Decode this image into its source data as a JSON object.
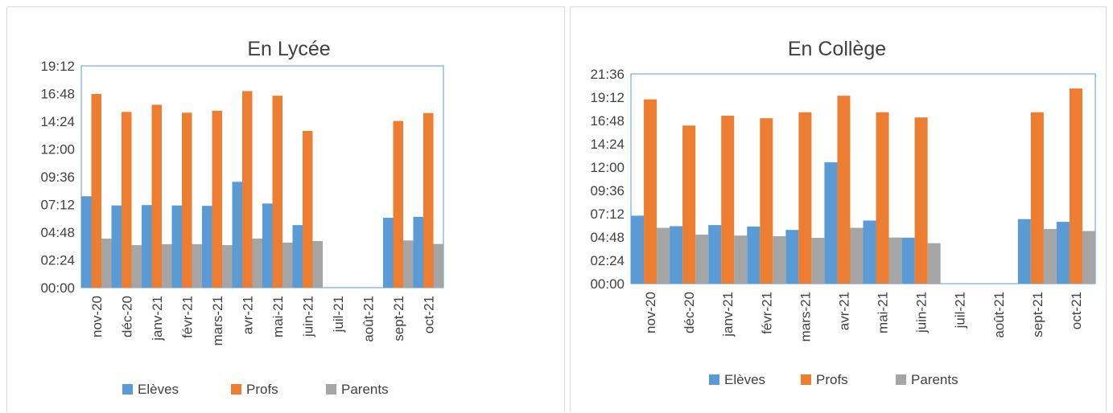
{
  "colors": {
    "eleves": "#5b9bd5",
    "profs": "#ed7d31",
    "parents": "#a5a5a5",
    "plot_border": "#5b9bd5"
  },
  "legend": [
    "Elèves",
    "Profs",
    "Parents"
  ],
  "chart_data": [
    {
      "type": "bar",
      "title": "En Lycée",
      "categories": [
        "nov-20",
        "déc-20",
        "janv-21",
        "févr-21",
        "mars-21",
        "avr-21",
        "mai-21",
        "juin-21",
        "juil-21",
        "août-21",
        "sept-21",
        "oct-21"
      ],
      "ylim_minutes": [
        0,
        1152
      ],
      "y_ticks": [
        "00:00",
        "02:24",
        "04:48",
        "07:12",
        "09:36",
        "12:00",
        "14:24",
        "16:48",
        "19:12"
      ],
      "series": [
        {
          "name": "Elèves",
          "values_minutes": [
            475,
            427,
            429,
            427,
            425,
            550,
            437,
            325,
            0,
            0,
            363,
            368
          ]
        },
        {
          "name": "Profs",
          "values_minutes": [
            1006,
            913,
            950,
            909,
            919,
            1021,
            997,
            814,
            0,
            0,
            866,
            907
          ]
        },
        {
          "name": "Parents",
          "values_minutes": [
            255,
            221,
            226,
            226,
            221,
            255,
            234,
            242,
            0,
            0,
            245,
            227
          ]
        }
      ],
      "legend_position": "bottom"
    },
    {
      "type": "bar",
      "title": "En Collège",
      "categories": [
        "nov-20",
        "déc-20",
        "janv-21",
        "févr-21",
        "mars-21",
        "avr-21",
        "mai-21",
        "juin-21",
        "juil-21",
        "août-21",
        "sept-21",
        "oct-21"
      ],
      "ylim_minutes": [
        0,
        1296
      ],
      "y_ticks": [
        "00:00",
        "02:24",
        "04:48",
        "07:12",
        "09:36",
        "12:00",
        "14:24",
        "16:48",
        "19:12",
        "21:36"
      ],
      "series": [
        {
          "name": "Elèves",
          "values_minutes": [
            420,
            355,
            362,
            353,
            332,
            750,
            390,
            284,
            0,
            0,
            399,
            382
          ]
        },
        {
          "name": "Profs",
          "values_minutes": [
            1139,
            977,
            1038,
            1022,
            1059,
            1161,
            1059,
            1027,
            0,
            0,
            1059,
            1206
          ]
        },
        {
          "name": "Parents",
          "values_minutes": [
            345,
            303,
            297,
            293,
            283,
            345,
            285,
            250,
            0,
            0,
            338,
            325
          ]
        }
      ],
      "legend_position": "bottom"
    }
  ]
}
